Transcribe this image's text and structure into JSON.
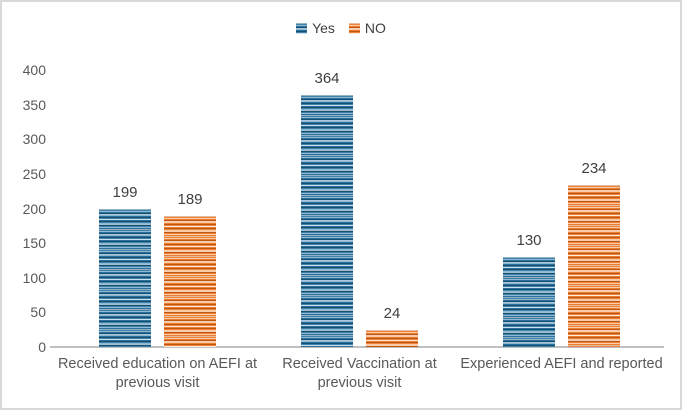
{
  "chart_data": {
    "type": "bar",
    "title": "",
    "categories": [
      "Received education on AEFI at previous visit",
      "Received Vaccination at previous visit",
      "Experienced AEFI and reported"
    ],
    "series": [
      {
        "name": "Yes",
        "color": "#2E75A3",
        "values": [
          199,
          364,
          130
        ]
      },
      {
        "name": "NO",
        "color": "#ED7D31",
        "values": [
          189,
          24,
          234
        ]
      }
    ],
    "xlabel": "",
    "ylabel": "",
    "ylim": [
      0,
      400
    ],
    "yticks": [
      0,
      50,
      100,
      150,
      200,
      250,
      300,
      350,
      400
    ],
    "grid": false,
    "legend_position": "top-center",
    "value_labels_shown": true,
    "bar_texture": "horizontal-stripes"
  },
  "colors": {
    "series_yes": "#2E75A3",
    "series_no": "#ED7D31",
    "axis_line": "#BFBFBF",
    "tick_text": "#595959",
    "value_text": "#3F3F3F",
    "canvas_border": "#D9D9D9",
    "background": "#FFFFFF"
  }
}
